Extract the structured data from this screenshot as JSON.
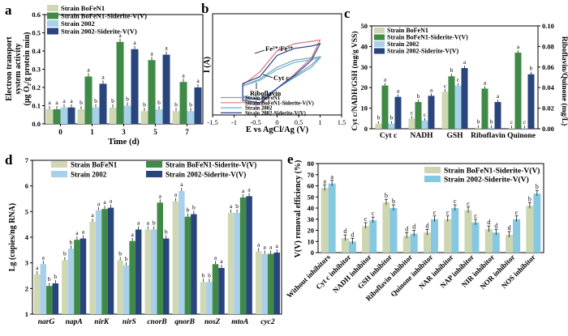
{
  "colors": {
    "s1": "#cfd8b3",
    "s2": "#3f8a46",
    "s3": "#a9d0ea",
    "s4": "#28457c",
    "e1": "#ccd6b0",
    "e2": "#86c8e2",
    "cv1": "#8899aa",
    "cv2": "#d9777f",
    "cv3": "#5bb7de",
    "cv4": "#2c3f8c"
  },
  "chart_data": [
    {
      "panel": "a",
      "type": "bar",
      "xlabel": "Time (d)",
      "ylabel_lines": [
        "Electron transport",
        "system activity",
        "(μg O₂/g protein min)"
      ],
      "categories": [
        "0",
        "1",
        "3",
        "5",
        "7"
      ],
      "ylim": [
        0,
        0.6
      ],
      "yticks": [
        "0.0",
        "0.1",
        "0.2",
        "0.3",
        "0.4",
        "0.5",
        "0.6"
      ],
      "legend_position": "top-left",
      "series": [
        {
          "name": "Strain BoFeN1",
          "values": [
            0.08,
            0.08,
            0.09,
            0.07,
            0.07
          ],
          "letters": [
            "a",
            "b",
            "b",
            "b",
            "b"
          ]
        },
        {
          "name": "Strain BoFeN1-Siderite-V(V)",
          "values": [
            0.08,
            0.26,
            0.45,
            0.35,
            0.23
          ],
          "letters": [
            "a",
            "a",
            "a",
            "a",
            "a"
          ]
        },
        {
          "name": "Strain 2002",
          "values": [
            0.09,
            0.09,
            0.1,
            0.08,
            0.07
          ],
          "letters": [
            "a",
            "b",
            "b",
            "b",
            "b"
          ]
        },
        {
          "name": "Strain 2002-Siderite-V(V)",
          "values": [
            0.09,
            0.22,
            0.41,
            0.38,
            0.2
          ],
          "letters": [
            "a",
            "a",
            "a",
            "a",
            "a"
          ]
        }
      ]
    },
    {
      "panel": "b",
      "type": "line",
      "xlabel": "E vs AgCl/Ag (V)",
      "ylabel": "I (A)",
      "xticks": [
        "-1.5",
        "-1",
        "-0.5",
        "0",
        "0.5",
        "1",
        "1.5"
      ],
      "xlim": [
        -1.5,
        1.5
      ],
      "annotations": [
        "Fe²⁺/Fe³⁺",
        "Cyt c",
        "Riboflavin"
      ],
      "legend_position": "bottom-center",
      "series": [
        {
          "name": "Strain BoFeN1",
          "x": [
            -0.8,
            -0.4,
            0.0,
            0.4,
            0.8,
            1.0,
            0.8,
            0.4,
            0.0,
            -0.4,
            -0.8
          ],
          "y": [
            0.1,
            0.25,
            0.5,
            0.65,
            0.7,
            0.72,
            0.55,
            0.3,
            0.05,
            -0.2,
            -0.15
          ]
        },
        {
          "name": "Strain BoFeN1-Siderite-V(V)",
          "x": [
            -0.8,
            -0.4,
            0.0,
            0.4,
            0.8,
            1.0,
            0.8,
            0.4,
            0.0,
            -0.4,
            -0.8
          ],
          "y": [
            0.12,
            0.4,
            0.85,
            1.0,
            1.05,
            1.08,
            0.7,
            0.35,
            0.05,
            -0.3,
            -0.25
          ]
        },
        {
          "name": "Strain 2002",
          "x": [
            -0.8,
            -0.4,
            0.0,
            0.4,
            0.8,
            1.0,
            0.8,
            0.4,
            0.0,
            -0.4,
            -0.8
          ],
          "y": [
            0.1,
            0.22,
            0.45,
            0.6,
            0.66,
            0.7,
            0.5,
            0.28,
            0.05,
            -0.18,
            -0.12
          ]
        },
        {
          "name": "Strain 2002-Siderite-V(V)",
          "x": [
            -0.8,
            -0.4,
            0.0,
            0.4,
            0.8,
            1.0,
            0.8,
            0.4,
            0.0,
            -0.4,
            -0.8
          ],
          "y": [
            0.15,
            0.3,
            0.75,
            0.9,
            0.95,
            1.0,
            0.65,
            0.32,
            0.05,
            -0.26,
            -0.2
          ]
        }
      ]
    },
    {
      "panel": "c",
      "type": "bar",
      "ylabel_left": "Cyt c/NADH/GSH (mg/g VSS)",
      "ylabel_right": "Riboflavin/Quinone (mg/L)",
      "categories": [
        "Cyt c",
        "NADH",
        "GSH",
        "Riboflavin",
        "Quinone"
      ],
      "ylim_left": [
        0,
        50
      ],
      "yticks_left": [
        "0",
        "10",
        "20",
        "30",
        "40",
        "50"
      ],
      "ylim_right": [
        0,
        0.1
      ],
      "yticks_right": [
        "0.00",
        "0.02",
        "0.04",
        "0.06",
        "0.08",
        "0.10"
      ],
      "legend_position": "top-left",
      "series": [
        {
          "name": "Strain BoFeN1",
          "values": [
            2.5,
            5.0,
            18.0,
            0.5,
            0.3
          ],
          "letters": [
            "b",
            "c",
            "c",
            "b",
            "c"
          ]
        },
        {
          "name": "Strain BoFeN1-Siderite-V(V)",
          "values": [
            21.0,
            13.0,
            25.5,
            19.5,
            37.0
          ],
          "letters": [
            "a",
            "b",
            "b",
            "a",
            "a"
          ]
        },
        {
          "name": "Strain 2002",
          "values": [
            2.5,
            4.0,
            21.0,
            0.5,
            0.3
          ],
          "letters": [
            "b",
            "c",
            "c",
            "b",
            "c"
          ]
        },
        {
          "name": "Strain 2002-Siderite-V(V)",
          "values": [
            15.5,
            16.0,
            29.5,
            13.0,
            26.5
          ],
          "letters": [
            "a",
            "a",
            "a",
            "a",
            "b"
          ]
        }
      ]
    },
    {
      "panel": "d",
      "type": "bar",
      "ylabel": "Lg (copies/ng RNA)",
      "categories": [
        "narG",
        "napA",
        "nirK",
        "nirS",
        "cnorB",
        "qnorB",
        "nosZ",
        "mtoA",
        "cyc2"
      ],
      "ylim": [
        1,
        7
      ],
      "yticks": [
        "1",
        "2",
        "3",
        "4",
        "5",
        "6",
        "7"
      ],
      "legend_position": "top",
      "series": [
        {
          "name": "Strain BoFeN1",
          "values": [
            2.55,
            3.1,
            4.6,
            3.1,
            4.3,
            5.4,
            2.25,
            4.95,
            3.45
          ],
          "letters": [
            "a",
            "b",
            "a",
            "b",
            "a",
            "a",
            "b",
            "a",
            "a"
          ]
        },
        {
          "name": "Strain 2002",
          "values": [
            2.95,
            3.55,
            5.05,
            2.9,
            4.3,
            5.8,
            2.25,
            4.95,
            3.35
          ],
          "letters": [
            "a",
            "b",
            "a",
            "b",
            "b",
            "a",
            "b",
            "b",
            "a"
          ]
        },
        {
          "name": "Strain BoFeN1-Siderite-V(V)",
          "values": [
            2.1,
            3.9,
            5.1,
            3.85,
            5.35,
            4.8,
            2.95,
            5.55,
            3.35
          ],
          "letters": [
            "b",
            "a",
            "a",
            "a",
            "a",
            "b",
            "a",
            "a",
            "a"
          ]
        },
        {
          "name": "Strain 2002-Siderite-V(V)",
          "values": [
            2.2,
            3.95,
            5.15,
            4.3,
            3.95,
            4.9,
            2.8,
            5.6,
            3.4
          ],
          "letters": [
            "b",
            "a",
            "a",
            "a",
            "b",
            "b",
            "a",
            "a",
            "a"
          ]
        }
      ]
    },
    {
      "panel": "e",
      "type": "bar",
      "ylabel": "V(V) removal efficiency (%)",
      "categories": [
        "Without inhibitors",
        "Cyt c inhibitor",
        "NADH inhibitor",
        "GSH inhibitor",
        "Riboflavin inhibitor",
        "Quinone inhibitor",
        "NAR inhibitor",
        "NAP inhibitor",
        "NIR inhibitor",
        "NOR inhibitor",
        "NOS inhibitor"
      ],
      "ylim": [
        0,
        80
      ],
      "yticks": [
        "0",
        "10",
        "20",
        "30",
        "40",
        "50",
        "60",
        "70",
        "80"
      ],
      "legend_position": "top-right",
      "series": [
        {
          "name": "Strain BoFeN1-Siderite-V(V)",
          "values": [
            58,
            13,
            24,
            45,
            15,
            18,
            30,
            38,
            21,
            16,
            42
          ],
          "letters": [
            "a",
            "d",
            "c",
            "b",
            "d",
            "d",
            "c",
            "c",
            "d",
            "d",
            "b"
          ]
        },
        {
          "name": "Strain 2002-Siderite-V(V)",
          "values": [
            62,
            10,
            29,
            40,
            17,
            30,
            40,
            27,
            18,
            30,
            53
          ],
          "letters": [
            "a",
            "d",
            "c",
            "b",
            "d",
            "c",
            "c",
            "c",
            "d",
            "c",
            "b"
          ]
        }
      ]
    }
  ]
}
